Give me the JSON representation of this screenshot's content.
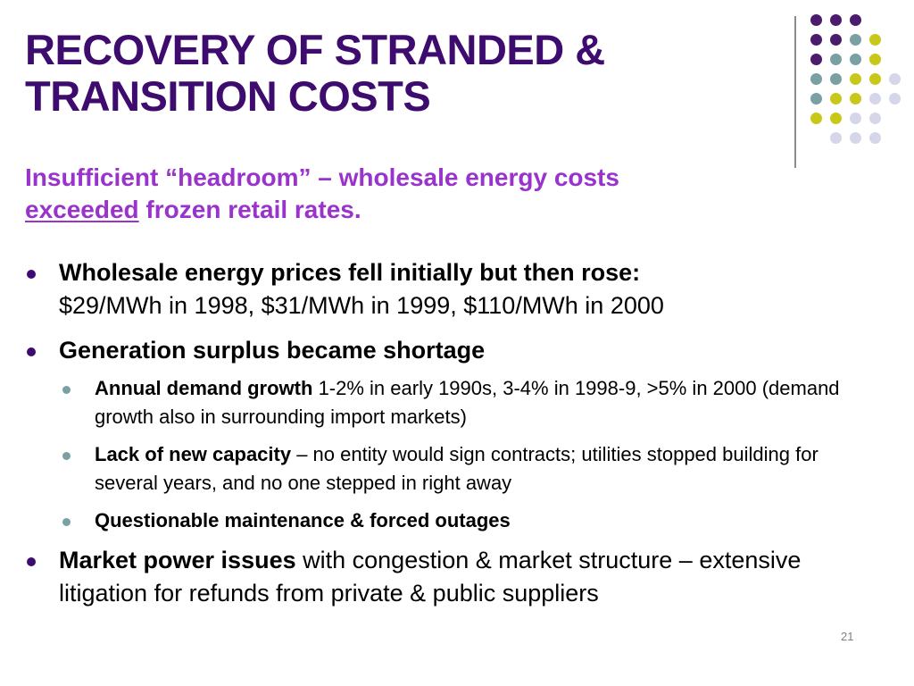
{
  "slide": {
    "title_line1": "RECOVERY OF STRANDED &",
    "title_line2": "TRANSITION COSTS",
    "subtitle_part1": "Insufficient “headroom” – wholesale energy costs",
    "subtitle_underlined": "exceeded",
    "subtitle_part2": " frozen retail rates.",
    "page_number": "21",
    "colors": {
      "title": "#3d0c6e",
      "subtitle": "#9933cc",
      "dot_purple": "#4b1c6e",
      "dot_teal": "#7aa0a3",
      "dot_yellow": "#c8c81a",
      "dot_lavender": "#d6d6ea"
    }
  },
  "bullets": [
    {
      "bold": "Wholesale energy prices fell initially but then rose:",
      "text": "$29/MWh in 1998, $31/MWh in 1999, $110/MWh in 2000"
    },
    {
      "bold": "Generation surplus became shortage",
      "sub": [
        {
          "bold": "Annual demand growth",
          "text": " 1-2% in early 1990s, 3-4% in 1998-9, >5% in 2000 (demand growth also in surrounding import markets)"
        },
        {
          "bold": "Lack of new capacity",
          "text": " – no entity would sign contracts; utilities stopped building for several years, and no one stepped in right away"
        },
        {
          "bold": "Questionable maintenance & forced outages",
          "text": ""
        }
      ]
    },
    {
      "bold": "Market power issues",
      "text": " with congestion & market structure – extensive litigation for refunds from private & public suppliers"
    }
  ]
}
